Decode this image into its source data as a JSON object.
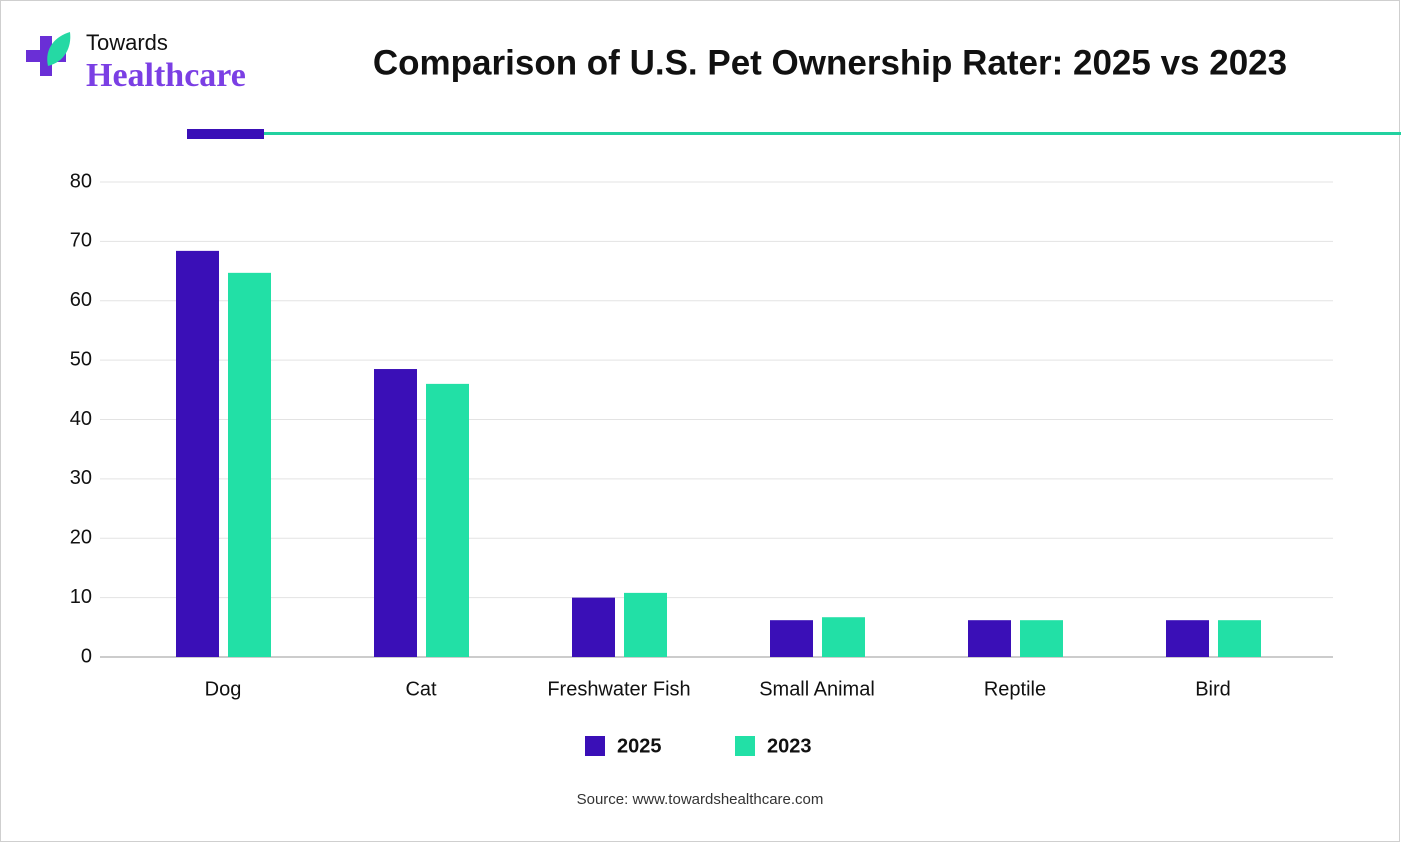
{
  "brand": {
    "line1": "Towards",
    "line2": "Healthcare"
  },
  "chart_data": {
    "type": "bar",
    "title": "Comparison of U.S. Pet Ownership Rater: 2025 vs 2023",
    "categories": [
      "Dog",
      "Cat",
      "Freshwater Fish",
      "Small Animal",
      "Reptile",
      "Bird"
    ],
    "series": [
      {
        "name": "2025",
        "color": "#3a0fb7",
        "values": [
          68.4,
          48.5,
          10,
          6.2,
          6.2,
          6.2
        ]
      },
      {
        "name": "2023",
        "color": "#22e0a6",
        "values": [
          64.7,
          46,
          10.8,
          6.7,
          6.2,
          6.2
        ]
      }
    ],
    "ylim": [
      0,
      80
    ],
    "yticks": [
      0,
      10,
      20,
      30,
      40,
      50,
      60,
      70,
      80
    ],
    "grid": true,
    "source": "Source: www.towardshealthcare.com"
  }
}
